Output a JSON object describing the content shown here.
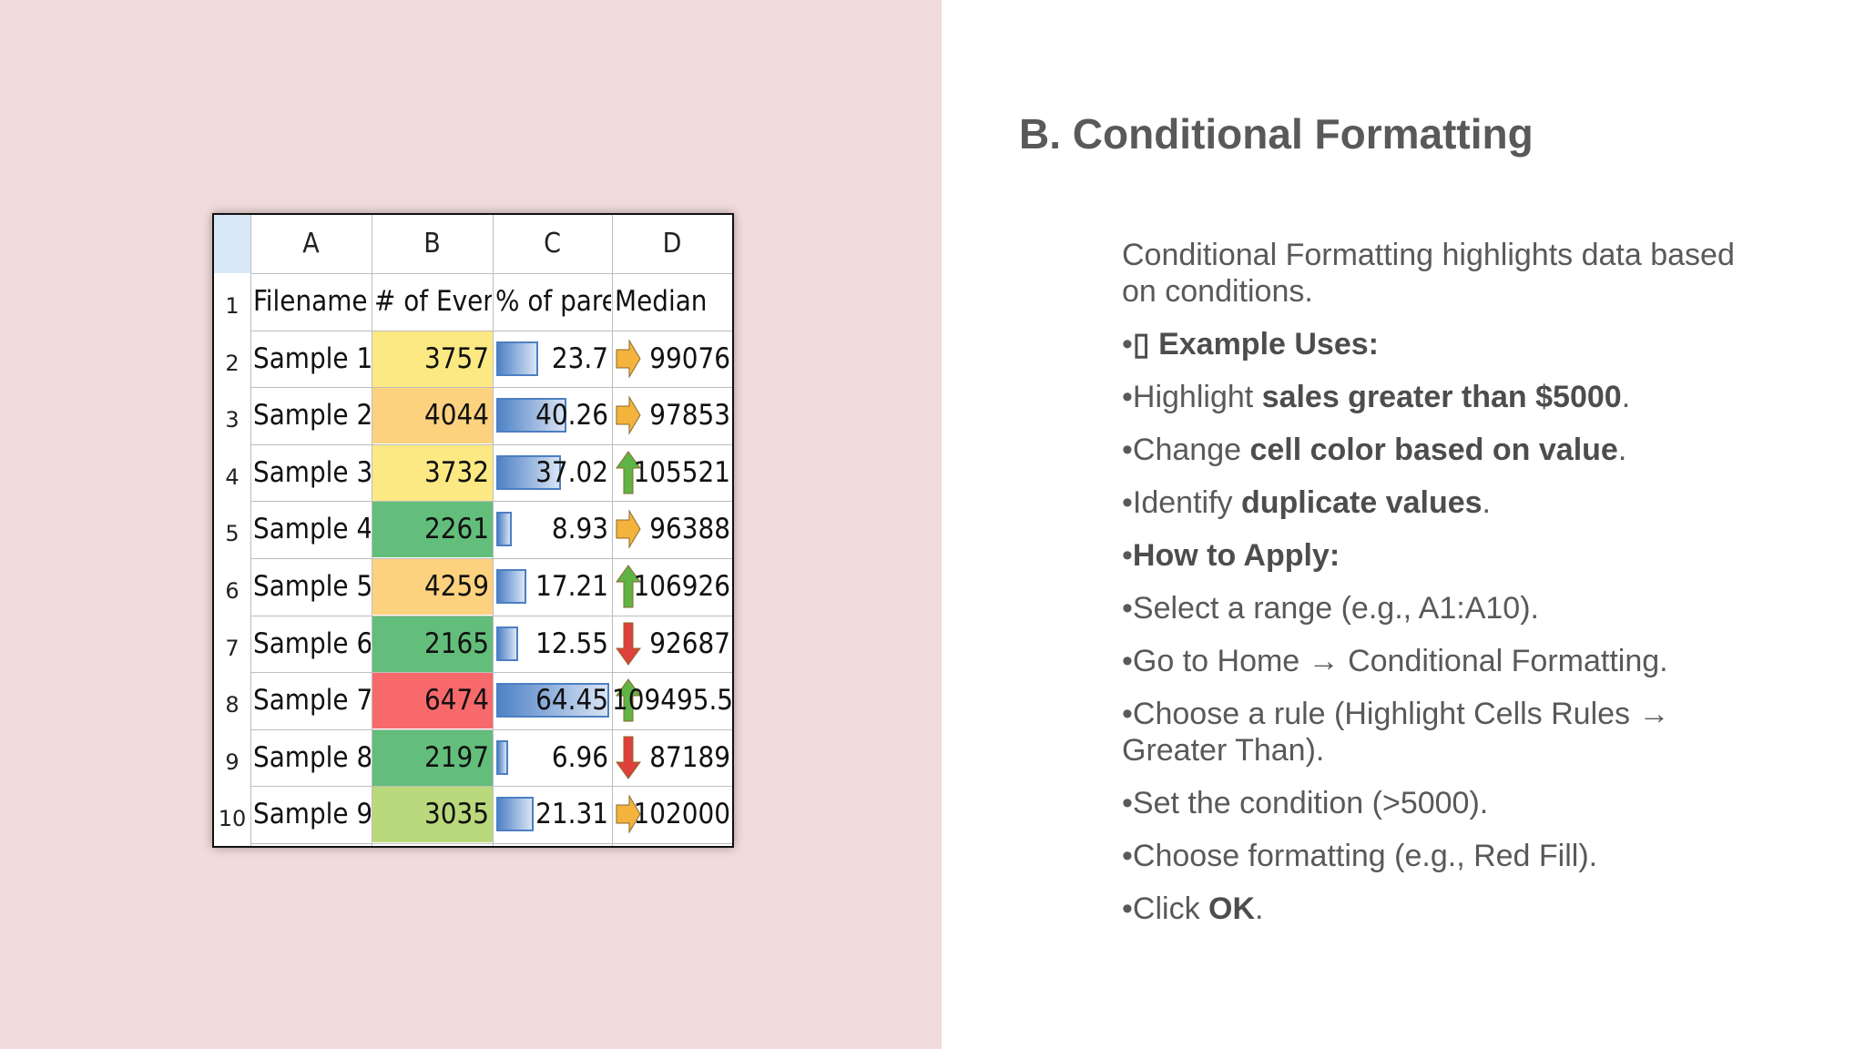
{
  "slide": {
    "title": "B. Conditional Formatting",
    "intro": "Conditional Formatting highlights data based on conditions.",
    "example_heading": "Example Uses:",
    "example_glyph": "▯",
    "bullet": "•",
    "bullets": [
      {
        "pre": "Highlight ",
        "bold": "sales greater than $5000",
        "post": "."
      },
      {
        "pre": "Change ",
        "bold": "cell color based on value",
        "post": "."
      },
      {
        "pre": "Identify ",
        "bold": "duplicate values",
        "post": "."
      }
    ],
    "apply_heading": "How to Apply:",
    "steps": [
      "Select a range (e.g., A1:A10).",
      "Go to Home → Conditional Formatting.",
      "Choose a rule (Highlight Cells Rules → Greater Than).",
      "Set the condition (>5000).",
      "Choose formatting (e.g., Red Fill)."
    ],
    "last_step": {
      "pre": "Click ",
      "bold": "OK",
      "post": "."
    }
  },
  "spreadsheet": {
    "column_letters": [
      "A",
      "B",
      "C",
      "D"
    ],
    "headers": [
      "Filename",
      "# of Events",
      "% of parent",
      "Median"
    ],
    "row_numbers": [
      "1",
      "2",
      "3",
      "4",
      "5",
      "6",
      "7",
      "8",
      "9",
      "10"
    ],
    "rows": [
      {
        "filename": "Sample 1",
        "events": "3757",
        "percent": "23.7",
        "median": "99076",
        "event_color": "#fde984",
        "trend": "right",
        "pct_value": 23.7
      },
      {
        "filename": "Sample 2",
        "events": "4044",
        "percent": "40.26",
        "median": "97853",
        "event_color": "#fcd27f",
        "trend": "right",
        "pct_value": 40.26
      },
      {
        "filename": "Sample 3",
        "events": "3732",
        "percent": "37.02",
        "median": "105521",
        "event_color": "#fde984",
        "trend": "up",
        "pct_value": 37.02
      },
      {
        "filename": "Sample 4",
        "events": "2261",
        "percent": "8.93",
        "median": "96388",
        "event_color": "#63be7b",
        "trend": "right",
        "pct_value": 8.93
      },
      {
        "filename": "Sample 5",
        "events": "4259",
        "percent": "17.21",
        "median": "106926",
        "event_color": "#fcd27f",
        "trend": "up",
        "pct_value": 17.21
      },
      {
        "filename": "Sample 6",
        "events": "2165",
        "percent": "12.55",
        "median": "92687",
        "event_color": "#63be7b",
        "trend": "down",
        "pct_value": 12.55
      },
      {
        "filename": "Sample 7",
        "events": "6474",
        "percent": "64.45",
        "median": "109495.5",
        "event_color": "#f8696b",
        "trend": "up",
        "pct_value": 64.45
      },
      {
        "filename": "Sample 8",
        "events": "2197",
        "percent": "6.96",
        "median": "87189",
        "event_color": "#63be7b",
        "trend": "down",
        "pct_value": 6.96
      },
      {
        "filename": "Sample 9",
        "events": "3035",
        "percent": "21.31",
        "median": "102000",
        "event_color": "#b9d97c",
        "trend": "right",
        "pct_value": 21.31
      }
    ],
    "colors": {
      "up": "#5fb446",
      "down": "#e0403c",
      "right": "#f4b33d"
    }
  }
}
